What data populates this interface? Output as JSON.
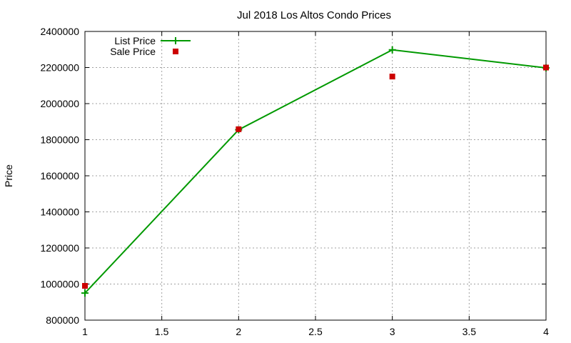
{
  "chart_data": {
    "type": "line",
    "title": "Jul 2018 Los Altos Condo Prices",
    "xlabel": "",
    "ylabel": "Price",
    "xlim": [
      1,
      4
    ],
    "ylim": [
      800000,
      2400000
    ],
    "x_ticks": [
      "1",
      "1.5",
      "2",
      "2.5",
      "3",
      "3.5",
      "4"
    ],
    "y_ticks": [
      "800000",
      "1000000",
      "1200000",
      "1400000",
      "1600000",
      "1800000",
      "2000000",
      "2200000",
      "2400000"
    ],
    "grid": true,
    "legend_position": "top-left",
    "series": [
      {
        "name": "List Price",
        "style": "linespoints",
        "color": "#009900",
        "marker": "plus",
        "points": [
          {
            "x": 1,
            "y": 950000
          },
          {
            "x": 2,
            "y": 1855000
          },
          {
            "x": 3,
            "y": 2298000
          },
          {
            "x": 4,
            "y": 2198000
          }
        ]
      },
      {
        "name": "Sale Price",
        "style": "points",
        "color": "#cc0000",
        "marker": "square",
        "points": [
          {
            "x": 1,
            "y": 990000
          },
          {
            "x": 2,
            "y": 1858000
          },
          {
            "x": 3,
            "y": 2150000
          },
          {
            "x": 4,
            "y": 2200000
          }
        ]
      }
    ]
  }
}
